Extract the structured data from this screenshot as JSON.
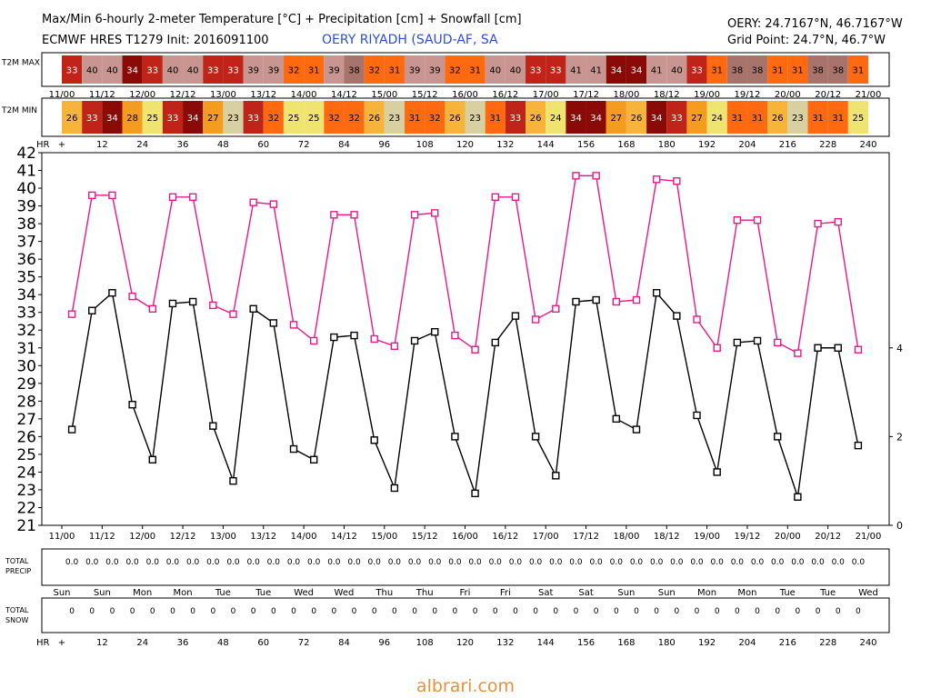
{
  "header": {
    "title": "Max/Min 6-hourly 2-meter Temperature [°C] + Precipitation [cm] + Snowfall [cm]",
    "model_init": "ECMWF HRES T1279 Init: 2016091100",
    "station": "OERY RIYADH (SAUD-AF, SA",
    "coords": "OERY: 24.7167°N, 46.7167°W",
    "grid_point": "Grid Point: 24.7°N, 46.7°W"
  },
  "watermark": "albrari.com",
  "colors": {
    "max_line": "#e8198a",
    "min_line": "#000000",
    "temp_scale": [
      {
        "upto": 23,
        "color": "#d8d0a0"
      },
      {
        "upto": 25,
        "color": "#f0e470"
      },
      {
        "upto": 26,
        "color": "#f6b43a"
      },
      {
        "upto": 28,
        "color": "#f39c1f"
      },
      {
        "upto": 31,
        "color": "#ff6a10"
      },
      {
        "upto": 32,
        "color": "#ff6a10"
      },
      {
        "upto": 33,
        "color": "#c02418"
      },
      {
        "upto": 34,
        "color": "#8a0a08"
      },
      {
        "upto": 38,
        "color": "#a8736a"
      },
      {
        "upto": 99,
        "color": "#c89590"
      }
    ]
  },
  "chart_data": {
    "type": "line",
    "hours": [
      0,
      6,
      12,
      18,
      24,
      30,
      36,
      42,
      48,
      54,
      60,
      66,
      72,
      78,
      84,
      90,
      96,
      102,
      108,
      114,
      120,
      126,
      132,
      138,
      144,
      150,
      156,
      162,
      168,
      174,
      180,
      186,
      192,
      198,
      204,
      210,
      216,
      222,
      228,
      234,
      240
    ],
    "date_labels": [
      "11/00",
      "11/12",
      "12/00",
      "12/12",
      "13/00",
      "13/12",
      "14/00",
      "14/12",
      "15/00",
      "15/12",
      "16/00",
      "16/12",
      "17/00",
      "17/12",
      "18/00",
      "18/12",
      "19/00",
      "19/12",
      "20/00",
      "20/12",
      "21/00"
    ],
    "hr_labels": [
      "+",
      "12",
      "24",
      "36",
      "48",
      "60",
      "72",
      "84",
      "96",
      "108",
      "120",
      "132",
      "144",
      "156",
      "168",
      "180",
      "192",
      "204",
      "216",
      "228",
      "240"
    ],
    "day_labels": [
      "Sun",
      "Sun",
      "Mon",
      "Mon",
      "Tue",
      "Tue",
      "Wed",
      "Wed",
      "Thu",
      "Thu",
      "Fri",
      "Fri",
      "Sat",
      "Sat",
      "Sun",
      "Sun",
      "Mon",
      "Mon",
      "Tue",
      "Tue",
      "Wed"
    ],
    "ylim": [
      21,
      42
    ],
    "yticks": [
      21,
      22,
      23,
      24,
      25,
      26,
      27,
      28,
      29,
      30,
      31,
      32,
      33,
      34,
      35,
      36,
      37,
      38,
      39,
      40,
      41,
      42
    ],
    "y2lim": [
      0,
      8.4
    ],
    "y2ticks": [
      0,
      2,
      4
    ],
    "series": [
      {
        "name": "T2M MAX",
        "values": [
          32.9,
          39.6,
          39.6,
          33.9,
          33.2,
          39.5,
          39.5,
          33.4,
          32.9,
          39.2,
          39.1,
          32.3,
          31.4,
          38.5,
          38.5,
          31.5,
          31.1,
          38.5,
          38.6,
          31.7,
          30.9,
          39.5,
          39.5,
          32.6,
          33.2,
          40.7,
          40.7,
          33.6,
          33.7,
          40.5,
          40.4,
          32.6,
          31.0,
          38.2,
          38.2,
          31.3,
          30.7,
          38.0,
          38.1,
          30.9
        ]
      },
      {
        "name": "T2M MIN",
        "values": [
          26.4,
          33.1,
          34.1,
          27.8,
          24.7,
          33.5,
          33.6,
          26.6,
          23.5,
          33.2,
          32.4,
          25.3,
          24.7,
          31.6,
          31.7,
          25.8,
          23.1,
          31.4,
          31.9,
          26.0,
          22.8,
          31.3,
          32.8,
          26.0,
          23.8,
          33.6,
          33.7,
          27.0,
          26.4,
          34.1,
          32.8,
          27.2,
          24.0,
          31.3,
          31.4,
          26.0,
          22.6,
          31.0,
          31.0,
          25.5
        ]
      }
    ],
    "strip_max": {
      "label": "T2M MAX",
      "values": [
        33,
        40,
        40,
        34,
        33,
        40,
        40,
        33,
        33,
        39,
        39,
        32,
        31,
        39,
        38,
        32,
        31,
        39,
        39,
        32,
        31,
        40,
        40,
        33,
        33,
        41,
        41,
        34,
        34,
        41,
        40,
        33,
        31,
        38,
        38,
        31,
        31,
        38,
        38,
        31
      ]
    },
    "strip_min": {
      "label": "T2M MIN",
      "values": [
        26,
        33,
        34,
        28,
        25,
        33,
        34,
        27,
        23,
        33,
        32,
        25,
        25,
        32,
        32,
        26,
        23,
        31,
        32,
        26,
        23,
        31,
        33,
        26,
        24,
        34,
        34,
        27,
        26,
        34,
        33,
        27,
        24,
        31,
        31,
        26,
        23,
        31,
        31,
        25
      ]
    },
    "precip": {
      "label_line1": "TOTAL",
      "label_line2": "PRECIP",
      "values": [
        "0.0",
        "0.0",
        "0.0",
        "0.0",
        "0.0",
        "0.0",
        "0.0",
        "0.0",
        "0.0",
        "0.0",
        "0.0",
        "0.0",
        "0.0",
        "0.0",
        "0.0",
        "0.0",
        "0.0",
        "0.0",
        "0.0",
        "0.0",
        "0.0",
        "0.0",
        "0.0",
        "0.0",
        "0.0",
        "0.0",
        "0.0",
        "0.0",
        "0.0",
        "0.0",
        "0.0",
        "0.0",
        "0.0",
        "0.0",
        "0.0",
        "0.0",
        "0.0",
        "0.0",
        "0.0",
        "0.0"
      ]
    },
    "snow": {
      "label_line1": "TOTAL",
      "label_line2": "SNOW",
      "values": [
        "0",
        "0",
        "0",
        "0",
        "0",
        "0",
        "0",
        "0",
        "0",
        "0",
        "0",
        "0",
        "0",
        "0",
        "0",
        "0",
        "0",
        "0",
        "0",
        "0",
        "0",
        "0",
        "0",
        "0",
        "0",
        "0",
        "0",
        "0",
        "0",
        "0",
        "0",
        "0",
        "0",
        "0",
        "0",
        "0",
        "0",
        "0",
        "0",
        "0"
      ]
    },
    "hr_axis_label": "HR"
  }
}
